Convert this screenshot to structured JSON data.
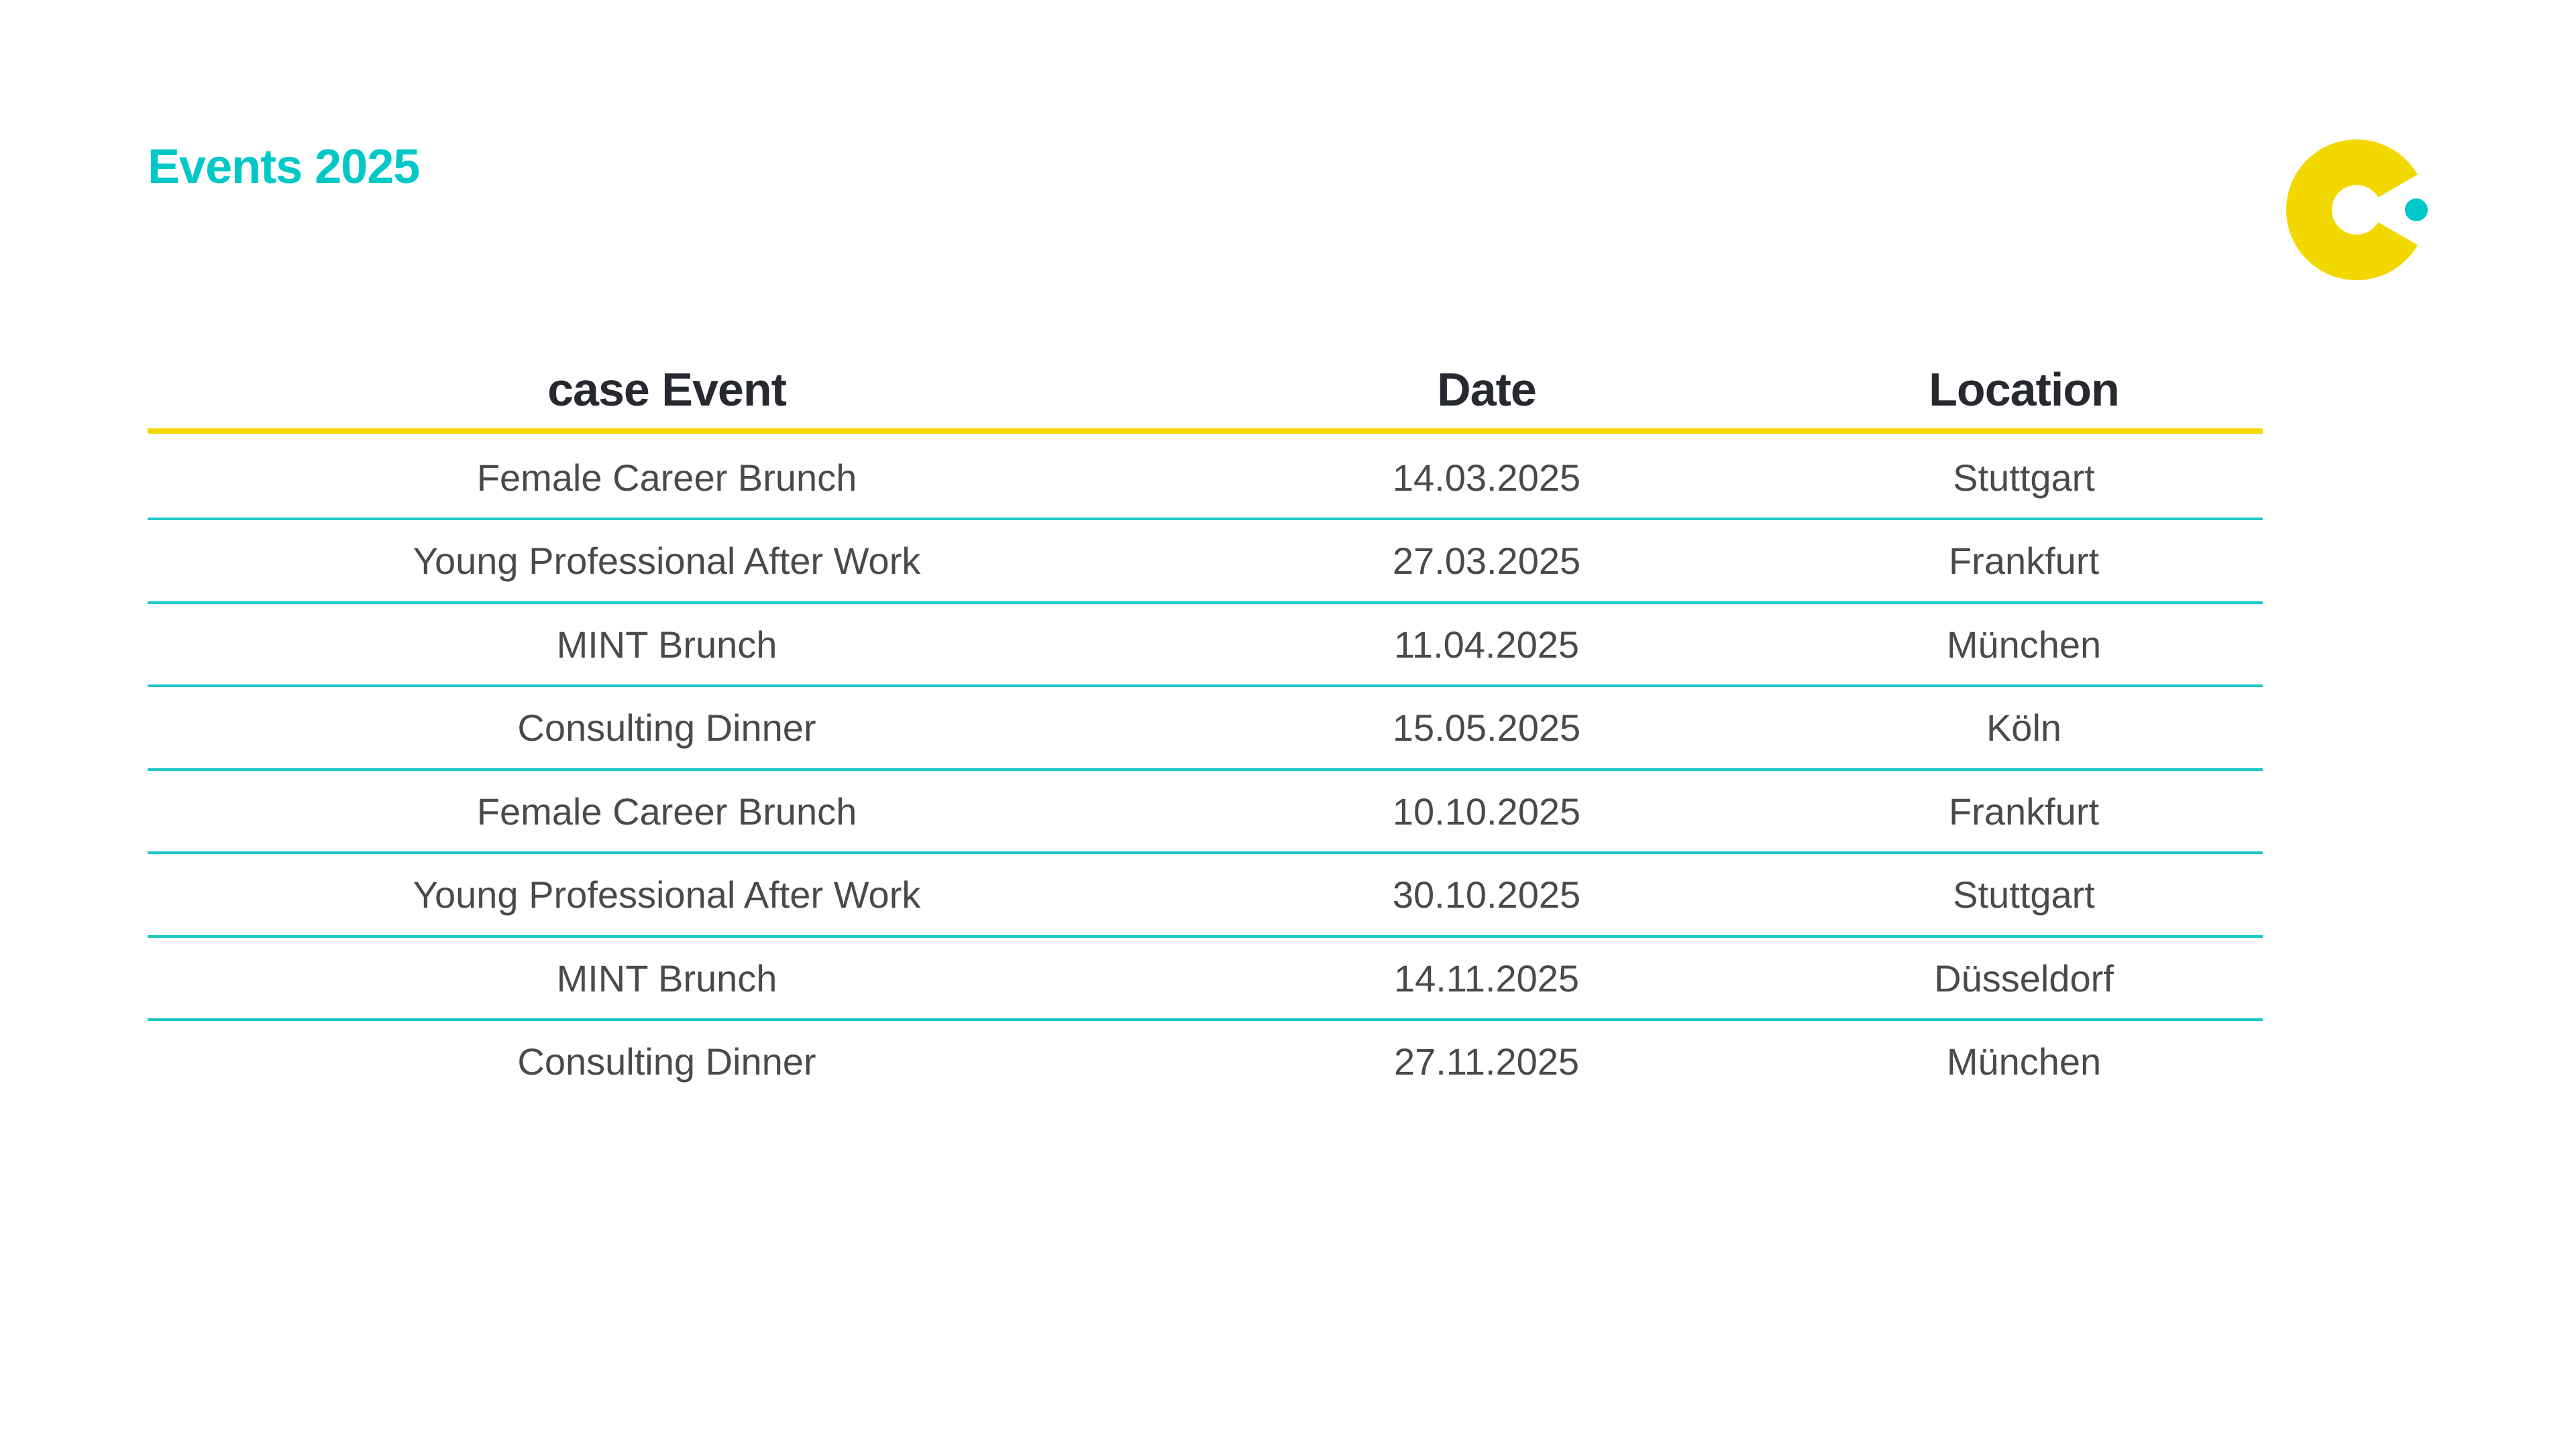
{
  "title": "Events 2025",
  "colors": {
    "accent": "#00c8c8",
    "brand_yellow": "#f3d800",
    "text": "#4a4a4a"
  },
  "logo": {
    "icon": "case-logo-icon"
  },
  "table": {
    "headers": [
      "case Event",
      "Date",
      "Location"
    ],
    "rows": [
      [
        "Female Career Brunch",
        "14.03.2025",
        "Stuttgart"
      ],
      [
        "Young Professional After Work",
        "27.03.2025",
        "Frankfurt"
      ],
      [
        "MINT Brunch",
        "11.04.2025",
        "München"
      ],
      [
        "Consulting Dinner",
        "15.05.2025",
        "Köln"
      ],
      [
        "Female Career Brunch",
        "10.10.2025",
        "Frankfurt"
      ],
      [
        "Young Professional After Work",
        "30.10.2025",
        "Stuttgart"
      ],
      [
        "MINT Brunch",
        "14.11.2025",
        "Düsseldorf"
      ],
      [
        "Consulting Dinner",
        "27.11.2025",
        "München"
      ]
    ]
  }
}
